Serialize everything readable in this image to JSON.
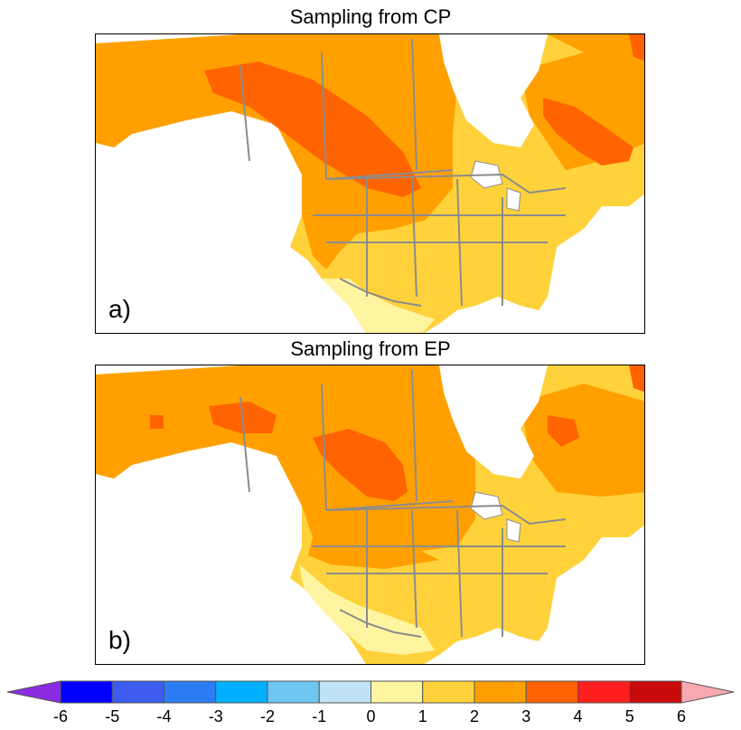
{
  "panels": [
    {
      "title": "Sampling from CP",
      "label": "a)"
    },
    {
      "title": "Sampling from EP",
      "label": "b)"
    }
  ],
  "colorbar": {
    "ticks": [
      "-6",
      "-5",
      "-4",
      "-3",
      "-2",
      "-1",
      "0",
      "1",
      "2",
      "3",
      "4",
      "5",
      "6"
    ],
    "low_color": "#8a2be2",
    "high_color": "#f7a8b0",
    "bins": [
      "#0000ff",
      "#3d5cf0",
      "#2b7cf5",
      "#00b0ff",
      "#6ec6f0",
      "#bfe3f5",
      "#fff5a0",
      "#ffd23c",
      "#ffa000",
      "#ff6400",
      "#ff1e1e",
      "#c80a0a"
    ]
  },
  "legend_colors": {
    "lt1": "#fff5a0",
    "1to2": "#ffd23c",
    "2to3": "#ffa000",
    "3to4": "#ff6400",
    "water": "#ffffff",
    "border": "#8c8c8c"
  }
}
